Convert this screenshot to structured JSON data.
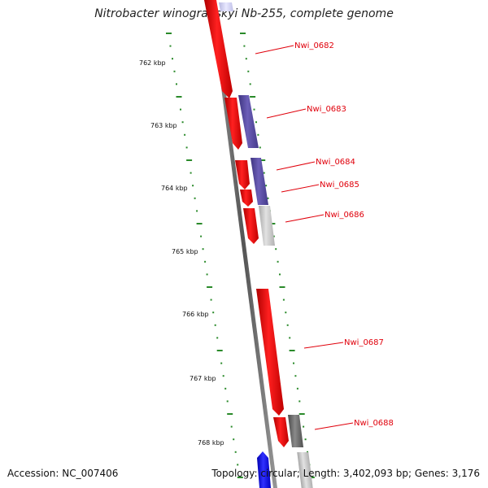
{
  "title": "Nitrobacter winogradskyi Nb-255, complete genome",
  "footer": {
    "accession": "Accession: NC_007406",
    "stats": "Topology: circular; Length: 3,402,093 bp; Genes: 3,176"
  },
  "kbp_ticks": [
    "762 kbp",
    "763 kbp",
    "764 kbp",
    "765 kbp",
    "766 kbp",
    "767 kbp",
    "768 kbp"
  ],
  "genes": [
    {
      "id": "Nwi_0682",
      "label": "Nwi_0682"
    },
    {
      "id": "Nwi_0683",
      "label": "Nwi_0683"
    },
    {
      "id": "Nwi_0684",
      "label": "Nwi_0684"
    },
    {
      "id": "Nwi_0685",
      "label": "Nwi_0685"
    },
    {
      "id": "Nwi_0686",
      "label": "Nwi_0686"
    },
    {
      "id": "Nwi_0687",
      "label": "Nwi_0687"
    },
    {
      "id": "Nwi_0688",
      "label": "Nwi_0688"
    }
  ],
  "colors": {
    "cds": "#ff0000",
    "cog_purple": "#5a4ba0",
    "cog_light": "#c8c8c8",
    "cog_dark": "#666666",
    "label": "#e0000b",
    "tick_dots": "#2a8a2a",
    "backbone": "#777777"
  }
}
